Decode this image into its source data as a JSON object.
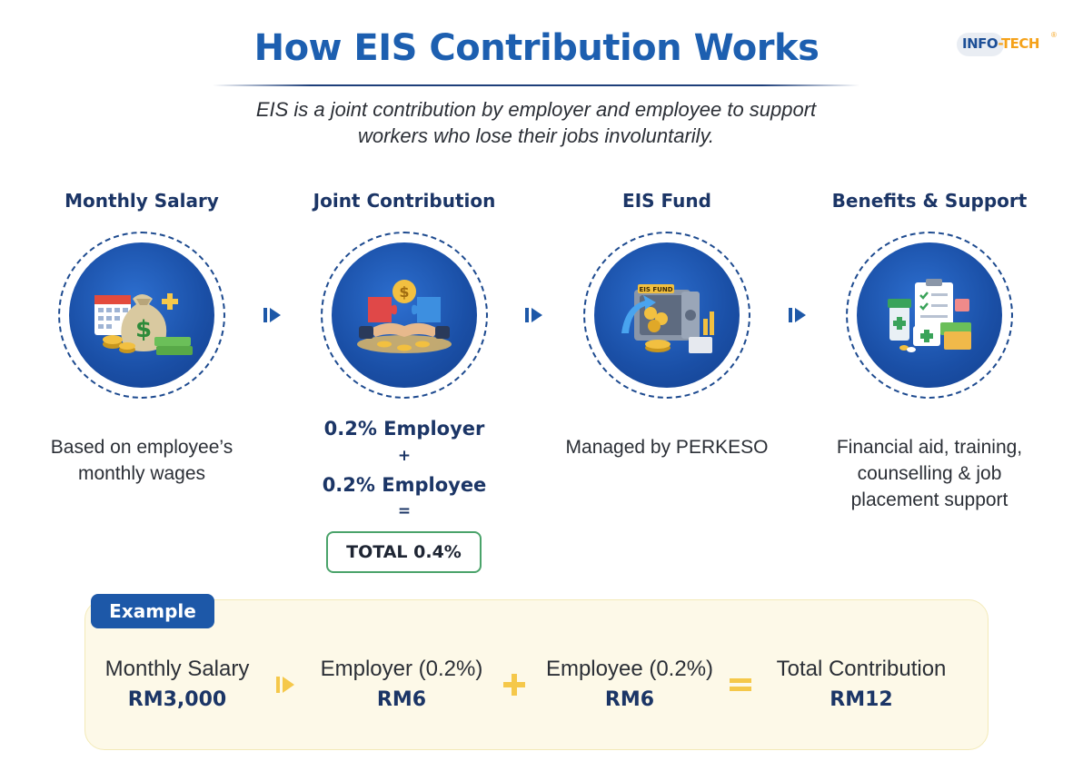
{
  "header": {
    "title": "How EIS Contribution Works",
    "subtitle": "EIS is a joint contribution by employer and employee to support workers who lose their jobs involuntarily."
  },
  "logo": {
    "text_main": "INFO",
    "text_accent": "-TECH",
    "reg": "®"
  },
  "steps": [
    {
      "title": "Monthly Salary",
      "icon": "salary-icon",
      "description": "Based on employee’s monthly wages"
    },
    {
      "title": "Joint Contribution",
      "icon": "handshake-icon",
      "description": ""
    },
    {
      "title": "EIS Fund",
      "icon": "fund-vault-icon",
      "description": "Managed by PERKESO"
    },
    {
      "title": "Benefits & Support",
      "icon": "benefits-icon",
      "description": "Financial aid, training, counselling & job placement support"
    }
  ],
  "joint": {
    "employer": "0.2% Employer",
    "plus": "+",
    "employee": "0.2% Employee",
    "equals": "=",
    "total": "TOTAL 0.4%"
  },
  "fund_label": "EIS FUND",
  "example": {
    "badge": "Example",
    "items": [
      {
        "label": "Monthly Salary",
        "value": "RM3,000"
      },
      {
        "label": "Employer (0.2%)",
        "value": "RM6"
      },
      {
        "label": "Employee (0.2%)",
        "value": "RM6"
      },
      {
        "label": "Total Contribution",
        "value": "RM12"
      }
    ]
  },
  "colors": {
    "title_blue": "#1d5fb0",
    "navy": "#1b3566",
    "circle_blue": "#1a4fa6",
    "accent_yellow": "#f5c84a",
    "green_border": "#4aa36a",
    "panel_bg": "#fdf9e8"
  }
}
